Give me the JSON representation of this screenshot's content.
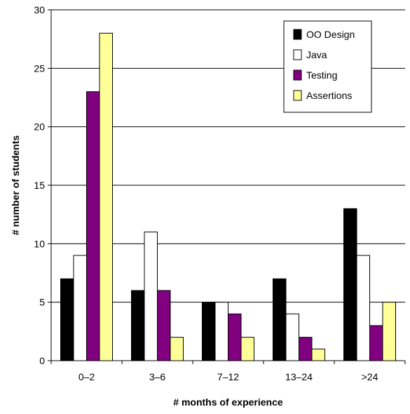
{
  "chart_data": {
    "type": "bar",
    "title": "",
    "xlabel": "# months of experience",
    "ylabel": "# number of students",
    "categories": [
      "0–2",
      "3–6",
      "7–12",
      "13–24",
      ">24"
    ],
    "ylim": [
      0,
      30
    ],
    "yticks": [
      0,
      5,
      10,
      15,
      20,
      25,
      30
    ],
    "grid": "horizontal",
    "legend_position": "top-right",
    "series": [
      {
        "name": "OO Design",
        "values": [
          7,
          6,
          5,
          7,
          13
        ],
        "color": "#000000"
      },
      {
        "name": "Java",
        "values": [
          9,
          11,
          5,
          4,
          9
        ],
        "color": "#ffffff"
      },
      {
        "name": "Testing",
        "values": [
          23,
          6,
          4,
          2,
          3
        ],
        "color": "#800080"
      },
      {
        "name": "Assertions",
        "values": [
          28,
          2,
          2,
          1,
          5
        ],
        "color": "#ffff99"
      }
    ]
  }
}
